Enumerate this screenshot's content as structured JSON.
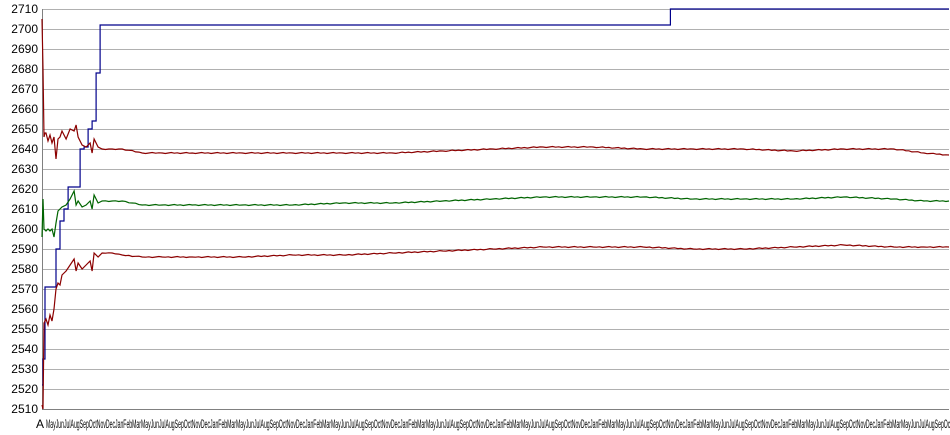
{
  "chart_data": {
    "type": "line",
    "title": "",
    "xlabel": "",
    "ylabel": "",
    "ylim": [
      2510,
      2710
    ],
    "ytick_step": 10,
    "grid": true,
    "legend": "none",
    "x_tick_labels_note": "dense overlapping month-name tick labels; only first legible is 'A'",
    "x_tick_first_label": "A",
    "x_tick_pattern": "MayJunJulAugSepOctNovDecJanFebMar",
    "x": [
      0,
      1,
      2,
      3,
      4,
      5,
      6,
      8,
      10,
      12,
      14,
      16,
      18,
      20,
      25,
      30,
      35,
      40,
      45,
      50,
      55,
      60,
      70,
      80,
      100,
      120,
      140,
      160,
      180,
      200,
      220,
      250,
      275,
      300,
      325,
      350,
      375,
      400,
      425,
      450,
      475,
      500,
      525,
      550,
      575,
      600,
      625,
      650,
      675,
      700,
      725,
      750,
      775,
      800,
      825,
      850,
      875,
      900,
      905
    ],
    "series": [
      {
        "color": "#00008b",
        "points": [
          [
            0,
            2522
          ],
          [
            1,
            2535
          ],
          [
            3,
            2571
          ],
          [
            10,
            2571
          ],
          [
            14,
            2590
          ],
          [
            18,
            2604
          ],
          [
            22,
            2610
          ],
          [
            26,
            2621
          ],
          [
            34,
            2621
          ],
          [
            38,
            2640
          ],
          [
            42,
            2641
          ],
          [
            46,
            2650
          ],
          [
            50,
            2654
          ],
          [
            54,
            2678
          ],
          [
            58,
            2702
          ],
          [
            200,
            2702
          ],
          [
            400,
            2702
          ],
          [
            626,
            2702
          ],
          [
            627,
            2710
          ],
          [
            905,
            2710
          ]
        ]
      },
      {
        "color": "#8b0000",
        "points": [
          [
            0,
            2705
          ],
          [
            1,
            2680
          ],
          [
            2,
            2646
          ],
          [
            3,
            2648
          ],
          [
            4,
            2648
          ],
          [
            6,
            2644
          ],
          [
            8,
            2647
          ],
          [
            10,
            2643
          ],
          [
            12,
            2646
          ],
          [
            14,
            2635
          ],
          [
            16,
            2645
          ],
          [
            18,
            2646
          ],
          [
            20,
            2649
          ],
          [
            24,
            2645
          ],
          [
            28,
            2650
          ],
          [
            32,
            2649
          ],
          [
            34,
            2652
          ],
          [
            36,
            2646
          ],
          [
            40,
            2642
          ],
          [
            44,
            2641
          ],
          [
            48,
            2643
          ],
          [
            50,
            2638
          ],
          [
            52,
            2645
          ],
          [
            56,
            2641
          ],
          [
            60,
            2640
          ],
          [
            70,
            2640
          ],
          [
            80,
            2640
          ],
          [
            100,
            2638
          ],
          [
            120,
            2638
          ],
          [
            150,
            2638
          ],
          [
            200,
            2638
          ],
          [
            250,
            2638
          ],
          [
            300,
            2638
          ],
          [
            350,
            2638
          ],
          [
            400,
            2639
          ],
          [
            450,
            2640
          ],
          [
            500,
            2641
          ],
          [
            550,
            2641
          ],
          [
            600,
            2640
          ],
          [
            650,
            2640
          ],
          [
            700,
            2640
          ],
          [
            750,
            2639
          ],
          [
            800,
            2640
          ],
          [
            850,
            2640
          ],
          [
            880,
            2638
          ],
          [
            905,
            2637
          ]
        ]
      },
      {
        "color": "#006400",
        "points": [
          [
            0,
            2596
          ],
          [
            1,
            2615
          ],
          [
            2,
            2600
          ],
          [
            4,
            2599
          ],
          [
            6,
            2600
          ],
          [
            8,
            2599
          ],
          [
            10,
            2600
          ],
          [
            12,
            2596
          ],
          [
            14,
            2603
          ],
          [
            16,
            2609
          ],
          [
            18,
            2610
          ],
          [
            20,
            2611
          ],
          [
            24,
            2612
          ],
          [
            28,
            2615
          ],
          [
            32,
            2619
          ],
          [
            34,
            2612
          ],
          [
            36,
            2614
          ],
          [
            40,
            2611
          ],
          [
            44,
            2612
          ],
          [
            48,
            2614
          ],
          [
            50,
            2610
          ],
          [
            52,
            2617
          ],
          [
            56,
            2613
          ],
          [
            60,
            2614
          ],
          [
            70,
            2614
          ],
          [
            80,
            2614
          ],
          [
            100,
            2612
          ],
          [
            120,
            2612
          ],
          [
            150,
            2612
          ],
          [
            200,
            2612
          ],
          [
            250,
            2612
          ],
          [
            300,
            2613
          ],
          [
            350,
            2613
          ],
          [
            400,
            2614
          ],
          [
            450,
            2615
          ],
          [
            500,
            2616
          ],
          [
            550,
            2616
          ],
          [
            600,
            2616
          ],
          [
            650,
            2615
          ],
          [
            700,
            2615
          ],
          [
            750,
            2615
          ],
          [
            800,
            2616
          ],
          [
            850,
            2615
          ],
          [
            880,
            2614
          ],
          [
            905,
            2614
          ]
        ]
      },
      {
        "color": "#8b0000",
        "points": [
          [
            0,
            2512
          ],
          [
            1,
            2510
          ],
          [
            2,
            2553
          ],
          [
            4,
            2555
          ],
          [
            6,
            2552
          ],
          [
            8,
            2557
          ],
          [
            10,
            2554
          ],
          [
            12,
            2560
          ],
          [
            14,
            2570
          ],
          [
            16,
            2573
          ],
          [
            18,
            2572
          ],
          [
            20,
            2577
          ],
          [
            24,
            2579
          ],
          [
            28,
            2582
          ],
          [
            32,
            2585
          ],
          [
            34,
            2579
          ],
          [
            36,
            2583
          ],
          [
            40,
            2580
          ],
          [
            44,
            2582
          ],
          [
            48,
            2584
          ],
          [
            50,
            2579
          ],
          [
            52,
            2588
          ],
          [
            56,
            2586
          ],
          [
            60,
            2588
          ],
          [
            70,
            2588
          ],
          [
            80,
            2587
          ],
          [
            100,
            2586
          ],
          [
            120,
            2586
          ],
          [
            150,
            2586
          ],
          [
            200,
            2586
          ],
          [
            250,
            2587
          ],
          [
            300,
            2587
          ],
          [
            350,
            2588
          ],
          [
            400,
            2589
          ],
          [
            450,
            2590
          ],
          [
            500,
            2591
          ],
          [
            550,
            2591
          ],
          [
            600,
            2591
          ],
          [
            650,
            2590
          ],
          [
            700,
            2590
          ],
          [
            750,
            2591
          ],
          [
            800,
            2592
          ],
          [
            850,
            2591
          ],
          [
            880,
            2591
          ],
          [
            905,
            2591
          ]
        ]
      }
    ],
    "yticks": [
      2510,
      2520,
      2530,
      2540,
      2550,
      2560,
      2570,
      2580,
      2590,
      2600,
      2610,
      2620,
      2630,
      2640,
      2650,
      2660,
      2670,
      2680,
      2690,
      2700,
      2710
    ]
  }
}
